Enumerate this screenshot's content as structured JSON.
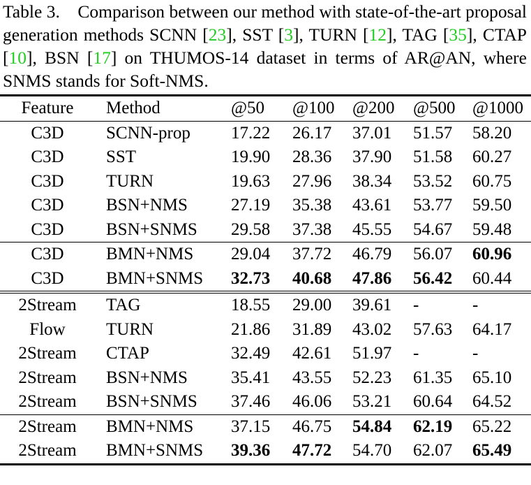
{
  "caption": [
    "Table 3. Comparison between our method with state-of-the-art proposal generation methods SCNN [",
    "23",
    "], SST [",
    "3",
    "], TURN [",
    "12",
    "], TAG [",
    "35",
    "], CTAP [",
    "10",
    "], BSN [",
    "17",
    "] on THUMOS-14 dataset in terms of AR@AN, where SNMS stands for Soft-NMS."
  ],
  "citation_color": "#22cc22",
  "table": {
    "header": [
      "Feature",
      "Method",
      "@50",
      "@100",
      "@200",
      "@500",
      "@1000"
    ],
    "groups": [
      [
        [
          "C3D",
          "SCNN-prop",
          "17.22",
          "26.17",
          "37.01",
          "51.57",
          "58.20"
        ],
        [
          "C3D",
          "SST",
          "19.90",
          "28.36",
          "37.90",
          "51.58",
          "60.27"
        ],
        [
          "C3D",
          "TURN",
          "19.63",
          "27.96",
          "38.34",
          "53.52",
          "60.75"
        ],
        [
          "C3D",
          "BSN+NMS",
          "27.19",
          "35.38",
          "43.61",
          "53.77",
          "59.50"
        ],
        [
          "C3D",
          "BSN+SNMS",
          "29.58",
          "37.38",
          "45.55",
          "54.67",
          "59.48"
        ]
      ],
      [
        [
          "C3D",
          "BMN+NMS",
          "29.04",
          "37.72",
          "46.79",
          "56.07",
          {
            "text": "60.96",
            "bold": true
          }
        ],
        [
          "C3D",
          "BMN+SNMS",
          {
            "text": "32.73",
            "bold": true
          },
          {
            "text": "40.68",
            "bold": true
          },
          {
            "text": "47.86",
            "bold": true
          },
          {
            "text": "56.42",
            "bold": true
          },
          "60.44"
        ]
      ],
      [
        [
          "2Stream",
          "TAG",
          "18.55",
          "29.00",
          "39.61",
          "-",
          "-"
        ],
        [
          "Flow",
          "TURN",
          "21.86",
          "31.89",
          "43.02",
          "57.63",
          "64.17"
        ],
        [
          "2Stream",
          "CTAP",
          "32.49",
          "42.61",
          "51.97",
          "-",
          "-"
        ],
        [
          "2Stream",
          "BSN+NMS",
          "35.41",
          "43.55",
          "52.23",
          "61.35",
          "65.10"
        ],
        [
          "2Stream",
          "BSN+SNMS",
          "37.46",
          "46.06",
          "53.21",
          "60.64",
          "64.52"
        ]
      ],
      [
        [
          "2Stream",
          "BMN+NMS",
          "37.15",
          "46.75",
          {
            "text": "54.84",
            "bold": true
          },
          {
            "text": "62.19",
            "bold": true
          },
          "65.22"
        ],
        [
          "2Stream",
          "BMN+SNMS",
          {
            "text": "39.36",
            "bold": true
          },
          {
            "text": "47.72",
            "bold": true
          },
          "54.70",
          "62.07",
          {
            "text": "65.49",
            "bold": true
          }
        ]
      ]
    ]
  }
}
